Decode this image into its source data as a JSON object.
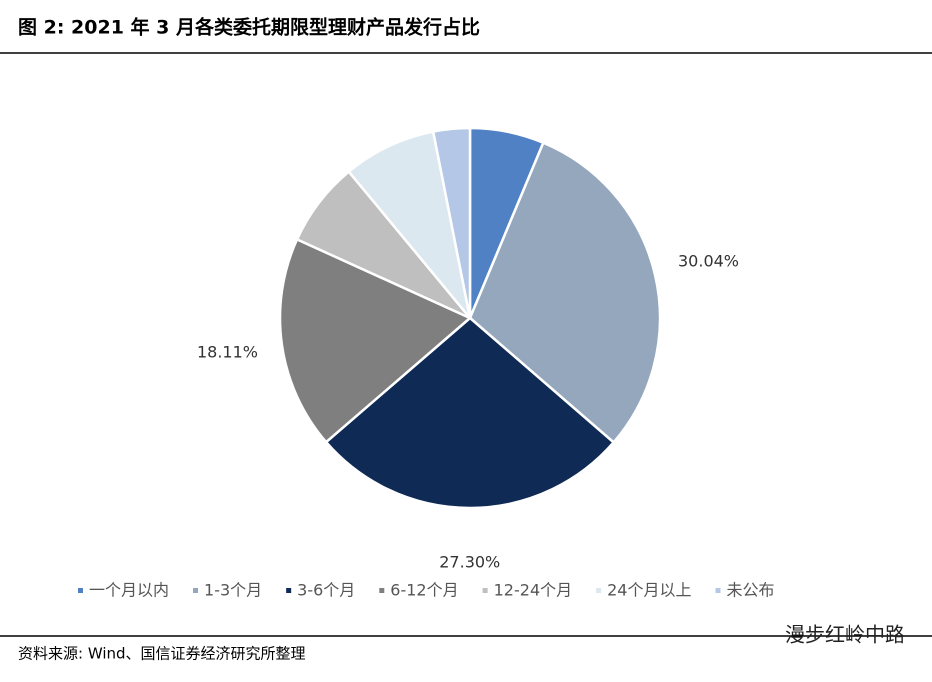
{
  "chart_data": {
    "type": "pie",
    "title": "图 2:  2021 年 3 月各类委托期限型理财产品发行占比",
    "categories": [
      "一个月以内",
      "1-3个月",
      "3-6个月",
      "6-12个月",
      "12-24个月",
      "24个月以上",
      "未公布"
    ],
    "values": [
      6.3,
      30.04,
      27.3,
      18.11,
      7.2,
      7.9,
      3.1
    ],
    "value_labels": [
      null,
      "30.04%",
      "27.30%",
      "18.11%",
      null,
      null,
      null
    ],
    "colors": [
      "#4f81c4",
      "#95a7bd",
      "#0f2a55",
      "#7f7f7f",
      "#bfbfbf",
      "#dce8f0",
      "#b4c7e7"
    ],
    "source": "资料来源: Wind、国信证券经济研究所整理"
  },
  "watermark": "漫步红岭中路"
}
